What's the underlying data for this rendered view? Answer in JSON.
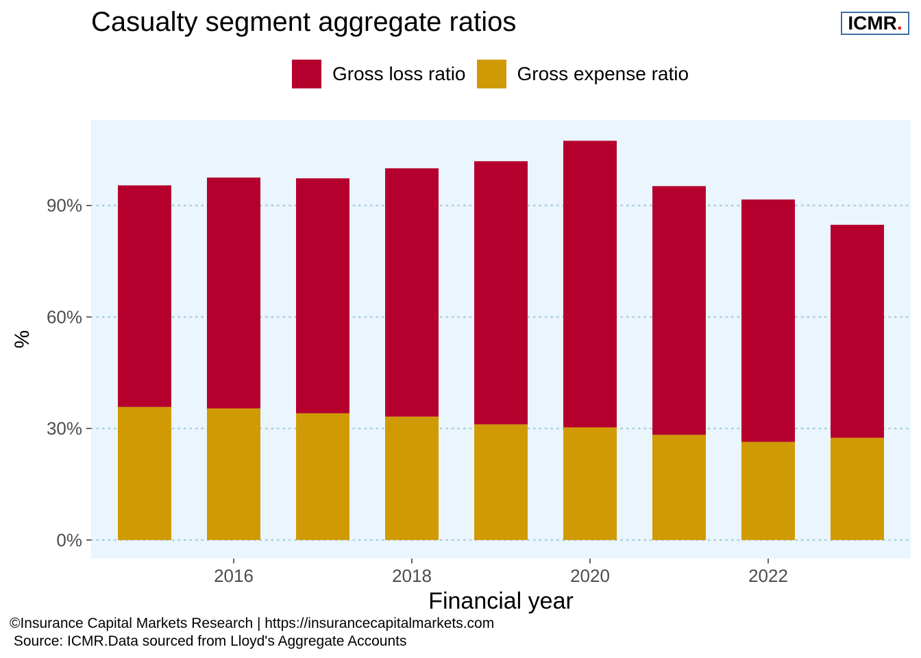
{
  "header": {
    "title": "Casualty segment aggregate ratios",
    "logo_text": "ICMR",
    "logo_dot": "."
  },
  "footer": {
    "line1": "©Insurance Capital Markets Research | https://insurancecapitalmarkets.com",
    "line2": " Source: ICMR.Data sourced from Lloyd's Aggregate Accounts"
  },
  "colors": {
    "loss": "#b5002e",
    "expense": "#d09a04",
    "panel": "#ebf5fd",
    "grid": "#a8d0db",
    "logo_border": "#3a6ea5",
    "logo_dot": "#e00000"
  },
  "chart_data": {
    "type": "bar",
    "stacked": true,
    "title": "Casualty segment aggregate ratios",
    "xlabel": "Financial year",
    "ylabel": "%",
    "x": [
      2015,
      2016,
      2017,
      2018,
      2019,
      2020,
      2021,
      2022,
      2023
    ],
    "series": [
      {
        "name": "Gross expense ratio",
        "values": [
          35.8,
          35.4,
          34.1,
          33.2,
          31.1,
          30.3,
          28.3,
          26.4,
          27.5
        ]
      },
      {
        "name": "Gross loss ratio",
        "values": [
          59.6,
          62.1,
          63.2,
          66.8,
          70.8,
          77.1,
          66.9,
          65.2,
          57.3
        ]
      }
    ],
    "legend_order": [
      "Gross loss ratio",
      "Gross expense ratio"
    ],
    "legend_position": "top",
    "ylim": [
      -5,
      113
    ],
    "xlim": [
      2014.4,
      2023.6
    ],
    "yticks": [
      0,
      30,
      60,
      90
    ],
    "ytick_labels": [
      "0%",
      "30%",
      "60%",
      "90%"
    ],
    "xticks": [
      2016,
      2018,
      2020,
      2022
    ],
    "xtick_labels": [
      "2016",
      "2018",
      "2020",
      "2022"
    ],
    "grid": "horizontal-dotted"
  }
}
